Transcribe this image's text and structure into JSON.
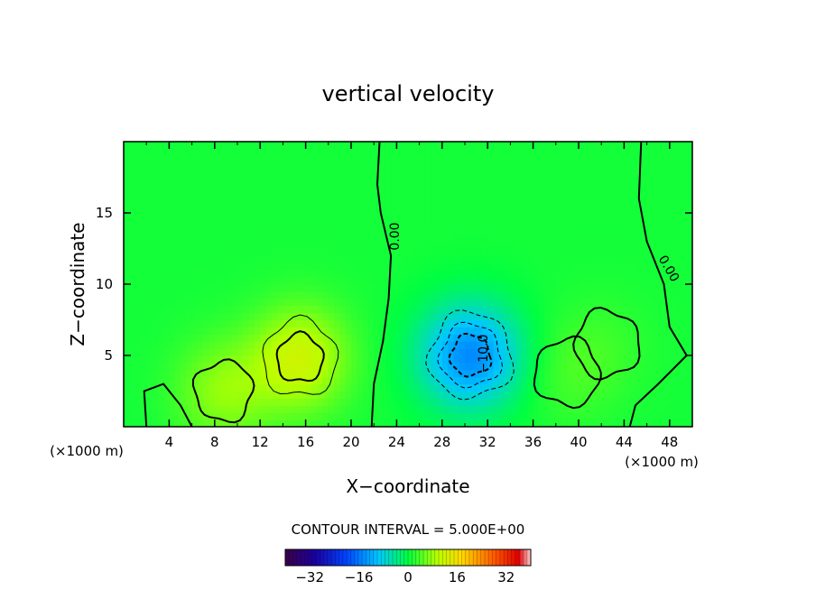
{
  "chart_data": {
    "type": "heatmap",
    "title": "vertical velocity",
    "xlabel": "X−coordinate",
    "ylabel": "Z−coordinate",
    "x_unit_left": "(×1000 m)",
    "x_unit_right": "(×1000 m)",
    "xlim": [
      0,
      50
    ],
    "ylim": [
      0,
      20
    ],
    "x_ticks": [
      4,
      8,
      12,
      16,
      20,
      24,
      28,
      32,
      36,
      40,
      44,
      48
    ],
    "x_tick_labels": [
      "4",
      "8",
      "12",
      "16",
      "20",
      "24",
      "28",
      "32",
      "36",
      "40",
      "44",
      "48"
    ],
    "y_ticks": [
      5,
      10,
      15
    ],
    "y_tick_labels": [
      "5",
      "10",
      "15"
    ],
    "contour_interval_label": "CONTOUR INTERVAL = 5.000E+00",
    "contour_labels": [
      "0.00",
      "−10.0",
      "0.00"
    ],
    "colorbar": {
      "range": [
        -40,
        40
      ],
      "ticks": [
        -32,
        -16,
        0,
        16,
        32
      ],
      "tick_labels": [
        "−32",
        "−16",
        "0",
        "16",
        "32"
      ]
    },
    "features": [
      {
        "kind": "updraft",
        "x": 15.5,
        "z": 4.8,
        "peak": 11
      },
      {
        "kind": "updraft",
        "x": 8.8,
        "z": 2.5,
        "peak": 7
      },
      {
        "kind": "downdraft",
        "x": 30.5,
        "z": 5.0,
        "peak": -15
      },
      {
        "kind": "updraft",
        "x": 39.0,
        "z": 3.8,
        "peak": 3
      },
      {
        "kind": "updraft",
        "x": 42.5,
        "z": 5.8,
        "peak": 2
      }
    ],
    "background_value": 1,
    "grid": false
  }
}
